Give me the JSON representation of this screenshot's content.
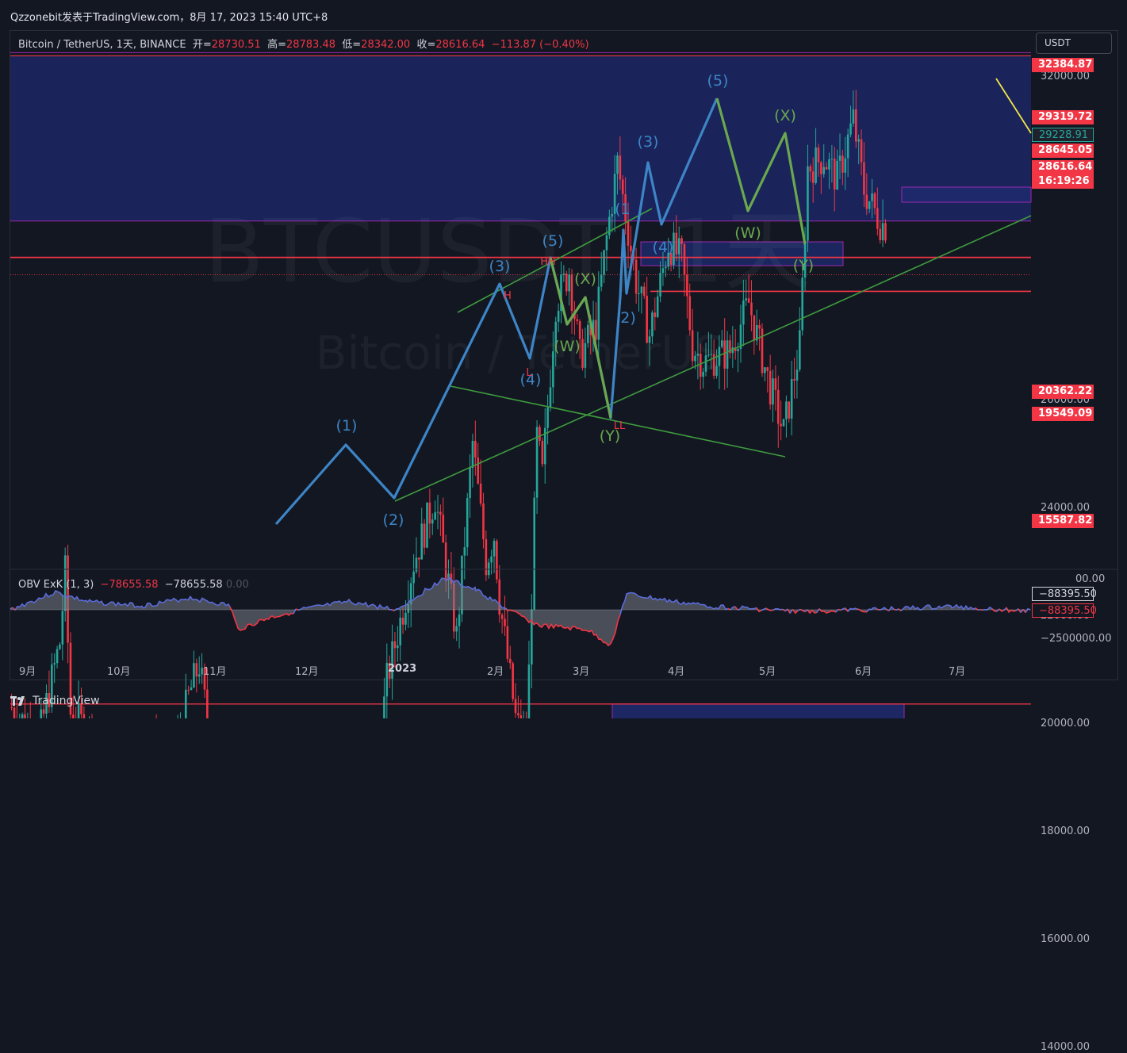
{
  "header": {
    "publish_line": "Qzzonebit发表于TradingView.com，8月 17, 2023 15:40 UTC+8"
  },
  "legend": {
    "symbol": "Bitcoin / TetherUS, 1天, BINANCE",
    "open_label": "开=",
    "open_value": "28730.51",
    "high_label": "高=",
    "high_value": "28783.48",
    "low_label": "低=",
    "low_value": "28342.00",
    "close_label": "收=",
    "close_value": "28616.64",
    "change_value": "−113.87 (−0.40%)"
  },
  "currency": "USDT",
  "watermark": {
    "line1": "BTCUSDT, 1天",
    "line2": "Bitcoin / TetherUS"
  },
  "obv_legend": {
    "name": "OBV ExK (1, 3)",
    "value1": "−78655.58",
    "value2": "−78655.58",
    "value3": "0.00"
  },
  "price_tags": [
    {
      "label": "32384.87",
      "color": "#f23645"
    },
    {
      "label": "29319.72",
      "color": "#f23645"
    },
    {
      "label": "29228.91",
      "color": "#1e222d"
    },
    {
      "label": "28645.05",
      "color": "#f23645"
    },
    {
      "label": "28616.64",
      "color": "#f23645"
    },
    {
      "label": "16:19:26",
      "color": "#f23645"
    },
    {
      "label": "20362.22",
      "color": "#f23645"
    },
    {
      "label": "19549.09",
      "color": "#f23645"
    },
    {
      "label": "15587.82",
      "color": "#f23645"
    }
  ],
  "obv_tags": [
    {
      "label": "−88395.50",
      "color": "#131722"
    },
    {
      "label": "−88395.50",
      "color": "#131722"
    }
  ],
  "footer": {
    "brand": "TradingView"
  },
  "colors": {
    "up": "#26a69a",
    "down": "#f23645",
    "wave_blue": "#3d85c6",
    "wave_green": "#6aa84f",
    "zone": "#1e2a6e",
    "resistance": "#f23645",
    "trendline": "#3f9c3f",
    "yellow": "#f5e54a"
  },
  "chart_data": {
    "type": "candlestick",
    "title": "",
    "symbol": "BTCUSDT",
    "timeframe": "1D",
    "y_ticks": [
      14000,
      16000,
      18000,
      20000,
      22000,
      24000,
      26000,
      32000
    ],
    "y_tick_labels": [
      "14000.00",
      "16000.00",
      "18000.00",
      "20000.00",
      "22000.00",
      "24000.00",
      "26000.00",
      "32000.00"
    ],
    "x_ticks": [
      "9月",
      "10月",
      "11月",
      "12月",
      "2023",
      "2月",
      "3月",
      "4月",
      "5月",
      "6月",
      "7月"
    ],
    "ylim": [
      13800,
      33200
    ],
    "horizontal_levels": [
      32384.87,
      29319.72,
      28645.05,
      28616.64,
      20362.22,
      19549.09,
      15587.82
    ],
    "price_path": [
      {
        "x": 0,
        "y": 20300
      },
      {
        "x": 10,
        "y": 19700
      },
      {
        "x": 18,
        "y": 21500
      },
      {
        "x": 20,
        "y": 22800
      },
      {
        "x": 22,
        "y": 20200
      },
      {
        "x": 30,
        "y": 19800
      },
      {
        "x": 40,
        "y": 18900
      },
      {
        "x": 50,
        "y": 19600
      },
      {
        "x": 60,
        "y": 19200
      },
      {
        "x": 66,
        "y": 20500
      },
      {
        "x": 70,
        "y": 21100
      },
      {
        "x": 72,
        "y": 20400
      },
      {
        "x": 74,
        "y": 16400
      },
      {
        "x": 80,
        "y": 16600
      },
      {
        "x": 84,
        "y": 15700
      },
      {
        "x": 90,
        "y": 16200
      },
      {
        "x": 96,
        "y": 16900
      },
      {
        "x": 104,
        "y": 17200
      },
      {
        "x": 106,
        "y": 18300
      },
      {
        "x": 110,
        "y": 16900
      },
      {
        "x": 120,
        "y": 16600
      },
      {
        "x": 125,
        "y": 16700
      },
      {
        "x": 132,
        "y": 17300
      },
      {
        "x": 140,
        "y": 20800
      },
      {
        "x": 150,
        "y": 23000
      },
      {
        "x": 158,
        "y": 24200
      },
      {
        "x": 163,
        "y": 22600
      },
      {
        "x": 166,
        "y": 21600
      },
      {
        "x": 172,
        "y": 25200
      },
      {
        "x": 177,
        "y": 23000
      },
      {
        "x": 180,
        "y": 23500
      },
      {
        "x": 182,
        "y": 22300
      },
      {
        "x": 188,
        "y": 20100
      },
      {
        "x": 192,
        "y": 19500
      },
      {
        "x": 196,
        "y": 25300
      },
      {
        "x": 198,
        "y": 24600
      },
      {
        "x": 203,
        "y": 27800
      },
      {
        "x": 208,
        "y": 28400
      },
      {
        "x": 212,
        "y": 26800
      },
      {
        "x": 218,
        "y": 27400
      },
      {
        "x": 222,
        "y": 29000
      },
      {
        "x": 226,
        "y": 30400
      },
      {
        "x": 233,
        "y": 28200
      },
      {
        "x": 238,
        "y": 27200
      },
      {
        "x": 245,
        "y": 28900
      },
      {
        "x": 250,
        "y": 28600
      },
      {
        "x": 254,
        "y": 27000
      },
      {
        "x": 258,
        "y": 26700
      },
      {
        "x": 268,
        "y": 26900
      },
      {
        "x": 275,
        "y": 27800
      },
      {
        "x": 282,
        "y": 26400
      },
      {
        "x": 288,
        "y": 25400
      },
      {
        "x": 294,
        "y": 27000
      },
      {
        "x": 297,
        "y": 30300
      },
      {
        "x": 303,
        "y": 30500
      },
      {
        "x": 308,
        "y": 30100
      },
      {
        "x": 314,
        "y": 31200
      },
      {
        "x": 318,
        "y": 29900
      },
      {
        "x": 324,
        "y": 29300
      },
      {
        "x": 327,
        "y": 29200
      }
    ],
    "wave_labels": [
      "(1)",
      "(2)",
      "(3)",
      "(4)",
      "(5)",
      "(W)",
      "(X)",
      "(Y)",
      "(1",
      "2)",
      "(3)",
      "(4)",
      "(5)",
      "(W)",
      "(X)",
      "(Y)",
      "HH",
      "LL",
      "L",
      "H"
    ],
    "obv_ticks": [
      "−2500000.00",
      "00.00"
    ]
  }
}
